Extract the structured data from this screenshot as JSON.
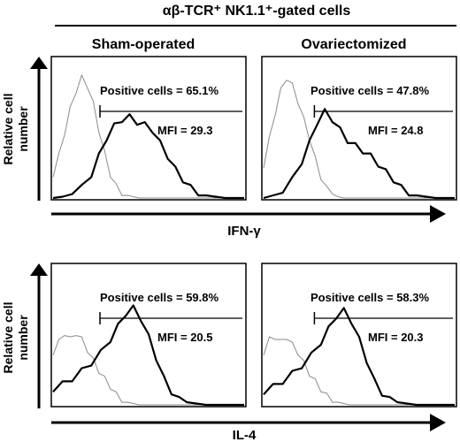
{
  "figure": {
    "title": "αβ-TCR⁺ NK1.1⁺-gated cells",
    "columns": [
      "Sham-operated",
      "Ovariectomized"
    ],
    "ylabel_line1": "Relative cell",
    "ylabel_line2": "number"
  },
  "chart_data": [
    {
      "type": "area",
      "title": "Sham-operated",
      "xlabel": "IFN-γ",
      "ylabel": "Relative cell number",
      "annotations": [
        "Positive cells = 65.1%",
        "MFI = 29.3"
      ],
      "positive_percent": 65.1,
      "mfi": 29.3,
      "series": [
        {
          "name": "",
          "x": [
            0.0,
            0.03,
            0.06,
            0.09,
            0.12,
            0.15,
            0.18,
            0.21,
            0.24,
            0.27,
            0.3,
            0.33,
            0.36,
            0.39,
            0.42,
            0.45,
            0.48,
            0.51,
            0.54,
            0.57,
            0.6,
            0.65,
            0.7,
            0.8,
            0.9,
            1.0
          ],
          "values": [
            0.18,
            0.32,
            0.5,
            0.68,
            0.82,
            0.92,
            0.86,
            0.72,
            0.52,
            0.34,
            0.18,
            0.09,
            0.04,
            0.02,
            0.01,
            0,
            0,
            0,
            0,
            0,
            0,
            0,
            0,
            0,
            0,
            0
          ]
        },
        {
          "name": "",
          "x": [
            0.0,
            0.05,
            0.1,
            0.15,
            0.2,
            0.24,
            0.28,
            0.32,
            0.36,
            0.4,
            0.44,
            0.48,
            0.52,
            0.56,
            0.6,
            0.64,
            0.68,
            0.72,
            0.76,
            0.8,
            0.85,
            0.9,
            1.0
          ],
          "values": [
            0,
            0.01,
            0.03,
            0.08,
            0.18,
            0.32,
            0.46,
            0.55,
            0.6,
            0.62,
            0.58,
            0.56,
            0.52,
            0.42,
            0.32,
            0.22,
            0.14,
            0.08,
            0.04,
            0.02,
            0.01,
            0,
            0
          ]
        }
      ]
    },
    {
      "type": "area",
      "title": "Ovariectomized",
      "xlabel": "IFN-γ",
      "ylabel": "Relative cell number",
      "annotations": [
        "Positive cells = 47.8%",
        "MFI = 24.8"
      ],
      "positive_percent": 47.8,
      "mfi": 24.8,
      "series": [
        {
          "name": "",
          "x": [
            0.0,
            0.03,
            0.06,
            0.09,
            0.12,
            0.15,
            0.18,
            0.21,
            0.24,
            0.27,
            0.3,
            0.33,
            0.36,
            0.39,
            0.42,
            0.45,
            0.5,
            0.6,
            0.8,
            1.0
          ],
          "values": [
            0.25,
            0.45,
            0.65,
            0.82,
            0.92,
            0.86,
            0.74,
            0.6,
            0.46,
            0.3,
            0.16,
            0.07,
            0.03,
            0.01,
            0,
            0,
            0,
            0,
            0,
            0
          ]
        },
        {
          "name": "",
          "x": [
            0.0,
            0.05,
            0.1,
            0.15,
            0.2,
            0.24,
            0.28,
            0.32,
            0.36,
            0.4,
            0.44,
            0.48,
            0.52,
            0.56,
            0.6,
            0.64,
            0.68,
            0.72,
            0.76,
            0.8,
            0.85,
            0.9,
            1.0
          ],
          "values": [
            0,
            0.02,
            0.06,
            0.14,
            0.28,
            0.42,
            0.58,
            0.66,
            0.6,
            0.52,
            0.44,
            0.4,
            0.36,
            0.32,
            0.26,
            0.2,
            0.14,
            0.08,
            0.04,
            0.02,
            0.01,
            0,
            0
          ]
        }
      ]
    },
    {
      "type": "area",
      "title": "Sham-operated",
      "xlabel": "IL-4",
      "ylabel": "Relative cell number",
      "annotations": [
        "Positive cells = 59.8%",
        "MFI = 20.5"
      ],
      "positive_percent": 59.8,
      "mfi": 20.5,
      "series": [
        {
          "name": "",
          "x": [
            0.0,
            0.03,
            0.06,
            0.09,
            0.12,
            0.15,
            0.18,
            0.21,
            0.24,
            0.27,
            0.3,
            0.33,
            0.36,
            0.39,
            0.42,
            0.45,
            0.5,
            0.6,
            0.8,
            1.0
          ],
          "values": [
            0.4,
            0.48,
            0.55,
            0.5,
            0.55,
            0.5,
            0.42,
            0.34,
            0.26,
            0.2,
            0.14,
            0.08,
            0.04,
            0.02,
            0.01,
            0,
            0,
            0,
            0,
            0
          ]
        },
        {
          "name": "",
          "x": [
            0.0,
            0.05,
            0.1,
            0.15,
            0.2,
            0.25,
            0.3,
            0.34,
            0.38,
            0.42,
            0.46,
            0.5,
            0.54,
            0.58,
            0.62,
            0.66,
            0.7,
            0.75,
            0.8,
            0.9,
            1.0
          ],
          "values": [
            0.12,
            0.16,
            0.2,
            0.26,
            0.32,
            0.4,
            0.5,
            0.6,
            0.7,
            0.74,
            0.66,
            0.52,
            0.36,
            0.2,
            0.1,
            0.04,
            0.02,
            0.01,
            0,
            0,
            0
          ]
        }
      ]
    },
    {
      "type": "area",
      "title": "Ovariectomized",
      "xlabel": "IL-4",
      "ylabel": "Relative cell number",
      "annotations": [
        "Positive cells = 58.3%",
        "MFI = 20.3"
      ],
      "positive_percent": 58.3,
      "mfi": 20.3,
      "series": [
        {
          "name": "",
          "x": [
            0.0,
            0.03,
            0.06,
            0.09,
            0.12,
            0.15,
            0.18,
            0.21,
            0.24,
            0.27,
            0.3,
            0.33,
            0.36,
            0.39,
            0.42,
            0.45,
            0.5,
            0.6,
            0.8,
            1.0
          ],
          "values": [
            0.4,
            0.5,
            0.52,
            0.48,
            0.52,
            0.46,
            0.4,
            0.32,
            0.24,
            0.18,
            0.12,
            0.07,
            0.04,
            0.02,
            0.01,
            0,
            0,
            0,
            0,
            0
          ]
        },
        {
          "name": "",
          "x": [
            0.0,
            0.05,
            0.1,
            0.15,
            0.2,
            0.25,
            0.3,
            0.34,
            0.38,
            0.42,
            0.46,
            0.5,
            0.54,
            0.58,
            0.62,
            0.66,
            0.7,
            0.75,
            0.8,
            0.9,
            1.0
          ],
          "values": [
            0.1,
            0.14,
            0.18,
            0.24,
            0.3,
            0.38,
            0.48,
            0.58,
            0.68,
            0.72,
            0.64,
            0.5,
            0.34,
            0.18,
            0.09,
            0.04,
            0.02,
            0.01,
            0,
            0,
            0
          ]
        }
      ]
    }
  ]
}
